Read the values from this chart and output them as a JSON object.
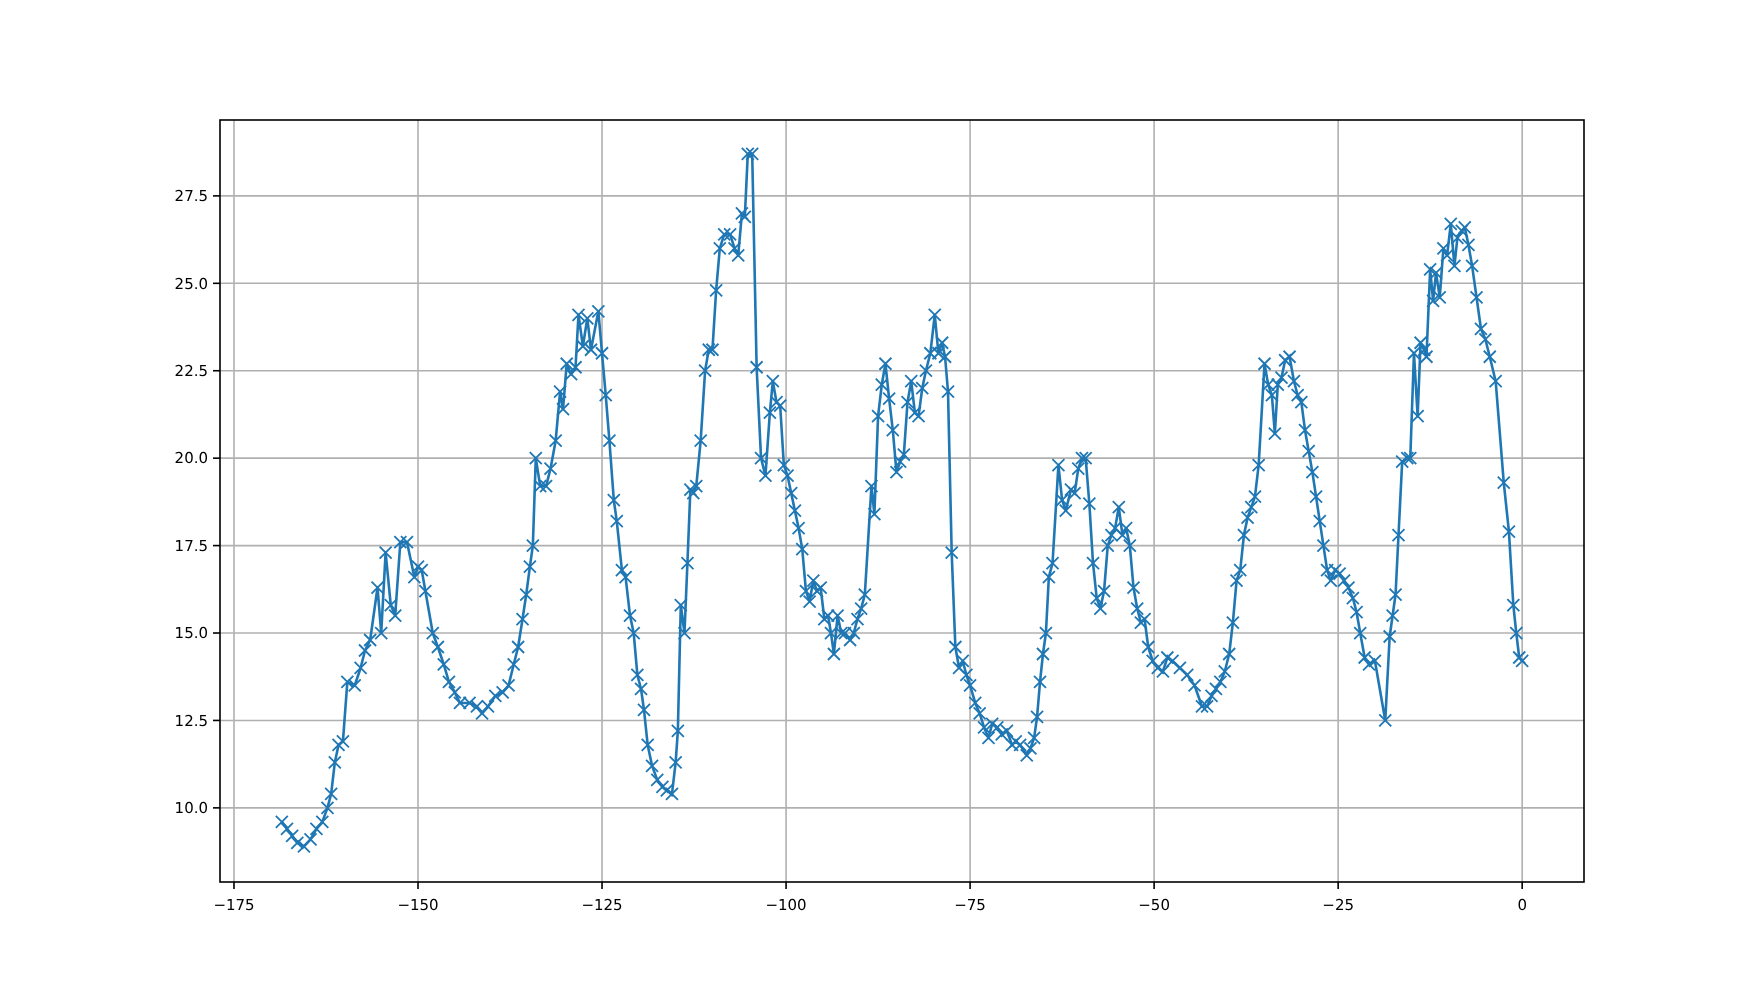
{
  "chart_data": {
    "type": "line",
    "xlim": [
      -176.9,
      8.4
    ],
    "ylim": [
      7.88,
      29.67
    ],
    "xticks": [
      {
        "value": -175,
        "label": "−175"
      },
      {
        "value": -150,
        "label": "−150"
      },
      {
        "value": -125,
        "label": "−125"
      },
      {
        "value": -100,
        "label": "−100"
      },
      {
        "value": -75,
        "label": "−75"
      },
      {
        "value": -50,
        "label": "−50"
      },
      {
        "value": -25,
        "label": "−25"
      },
      0
    ],
    "yticks": [
      {
        "value": 10,
        "label": "10.0"
      },
      {
        "value": 12.5,
        "label": "12.5"
      },
      {
        "value": 15,
        "label": "15.0"
      },
      {
        "value": 17.5,
        "label": "17.5"
      },
      {
        "value": 20,
        "label": "20.0"
      },
      {
        "value": 22.5,
        "label": "22.5"
      },
      {
        "value": 25,
        "label": "25.0"
      },
      {
        "value": 27.5,
        "label": "27.5"
      }
    ],
    "grid": true,
    "marker": "cross",
    "line_style": "solid",
    "series": [
      {
        "color": "#1f77b4",
        "x": [
          -168.5,
          -167.8,
          -167.1,
          -166.4,
          -165.5,
          -164.6,
          -163.8,
          -163,
          -162.3,
          -161.8,
          -161.3,
          -160.8,
          -160.2,
          -159.6,
          -158.6,
          -157.8,
          -157.2,
          -156.5,
          -155.5,
          -155,
          -154.4,
          -153.7,
          -153.1,
          -152.4,
          -151.5,
          -150.5,
          -150,
          -149.5,
          -149,
          -148,
          -147.3,
          -146.5,
          -145.8,
          -145,
          -144.3,
          -143,
          -142,
          -141.3,
          -140.5,
          -139.5,
          -138.5,
          -137.7,
          -137,
          -136.4,
          -135.8,
          -135.3,
          -134.8,
          -134.4,
          -134,
          -133.4,
          -132.6,
          -132,
          -131.3,
          -130.7,
          -130.3,
          -129.8,
          -129.2,
          -128.6,
          -128.2,
          -127.6,
          -127,
          -126.5,
          -125.5,
          -125,
          -124.5,
          -124,
          -123.4,
          -123,
          -122.3,
          -121.8,
          -121.2,
          -120.7,
          -120.2,
          -119.7,
          -119.3,
          -118.8,
          -118.2,
          -117.5,
          -116.8,
          -116.2,
          -115.5,
          -115,
          -114.7,
          -114.3,
          -113.8,
          -113.4,
          -113,
          -112.6,
          -112.2,
          -111.6,
          -111,
          -110.5,
          -110,
          -109.5,
          -109,
          -108.4,
          -107.6,
          -107,
          -106.5,
          -106,
          -105.6,
          -105.2,
          -104.6,
          -104,
          -103.4,
          -102.8,
          -102.2,
          -101.8,
          -101.3,
          -100.8,
          -100.3,
          -99.8,
          -99.3,
          -98.8,
          -98.3,
          -97.8,
          -97.3,
          -96.8,
          -96.3,
          -95.8,
          -95.3,
          -94.8,
          -94.3,
          -93.9,
          -93.5,
          -93,
          -92.5,
          -92,
          -91.3,
          -90.8,
          -90.3,
          -89.8,
          -89.3,
          -88.4,
          -88,
          -87.5,
          -87,
          -86.5,
          -86,
          -85.5,
          -85,
          -84.5,
          -84,
          -83.5,
          -83,
          -82.5,
          -82,
          -81.5,
          -81,
          -80.4,
          -79.8,
          -79.3,
          -78.8,
          -78.4,
          -78,
          -77.5,
          -77,
          -76.5,
          -76,
          -75.5,
          -75,
          -74.3,
          -73.7,
          -73.1,
          -72.5,
          -72,
          -71.3,
          -70.7,
          -70,
          -69.3,
          -68.8,
          -68.2,
          -67.3,
          -66.8,
          -66.3,
          -65.9,
          -65.5,
          -65.1,
          -64.7,
          -64.3,
          -63.8,
          -63,
          -62.5,
          -62,
          -61.3,
          -60.8,
          -60.3,
          -59.8,
          -59.3,
          -58.8,
          -58.3,
          -57.8,
          -57.3,
          -56.8,
          -56.3,
          -55.8,
          -55.3,
          -54.8,
          -54.3,
          -53.8,
          -53.3,
          -52.8,
          -52.3,
          -51.8,
          -51.3,
          -50.8,
          -50.2,
          -49.5,
          -48.8,
          -48.2,
          -47.5,
          -46.5,
          -45.5,
          -44.5,
          -43.5,
          -42.8,
          -42.2,
          -41.6,
          -41,
          -40.4,
          -39.8,
          -39.3,
          -38.8,
          -38.3,
          -37.8,
          -37.3,
          -36.8,
          -36.3,
          -35.8,
          -35,
          -34.5,
          -34,
          -33.6,
          -33.2,
          -32.7,
          -32.2,
          -31.6,
          -31,
          -30.5,
          -30,
          -29.5,
          -29,
          -28.5,
          -28,
          -27.5,
          -27,
          -26.5,
          -26,
          -25.4,
          -24.8,
          -24.2,
          -23.6,
          -23,
          -22.5,
          -22,
          -21.4,
          -20.8,
          -20,
          -18.6,
          -18,
          -17.6,
          -17.2,
          -16.8,
          -16.3,
          -15.6,
          -15.2,
          -14.7,
          -14.2,
          -13.8,
          -13.3,
          -13,
          -12.5,
          -12.1,
          -11.7,
          -11.2,
          -10.7,
          -10.2,
          -9.7,
          -9.2,
          -8.8,
          -8.2,
          -7.8,
          -7.3,
          -6.8,
          -6.2,
          -5.6,
          -5,
          -4.4,
          -3.6,
          -2.5,
          -1.8,
          -1.2,
          -0.8,
          -0.4,
          0
        ],
        "values": [
          9.6,
          9.4,
          9.2,
          9.0,
          8.9,
          9.1,
          9.4,
          9.6,
          10.0,
          10.4,
          11.3,
          11.8,
          11.9,
          13.6,
          13.5,
          14.0,
          14.5,
          14.8,
          16.3,
          15.0,
          17.3,
          15.8,
          15.5,
          17.6,
          17.6,
          16.6,
          16.9,
          16.8,
          16.2,
          15.0,
          14.6,
          14.1,
          13.6,
          13.3,
          13.0,
          13.0,
          12.9,
          12.7,
          12.9,
          13.2,
          13.3,
          13.5,
          14.1,
          14.6,
          15.4,
          16.1,
          16.9,
          17.5,
          20.0,
          19.2,
          19.2,
          19.7,
          20.5,
          21.9,
          21.4,
          22.7,
          22.4,
          22.6,
          24.1,
          23.2,
          24.0,
          23.1,
          24.2,
          23.0,
          21.8,
          20.5,
          18.8,
          18.2,
          16.8,
          16.6,
          15.5,
          15.0,
          13.8,
          13.4,
          12.8,
          11.8,
          11.2,
          10.8,
          10.6,
          10.5,
          10.4,
          11.3,
          12.2,
          15.8,
          15.0,
          17.0,
          19.1,
          19.0,
          19.2,
          20.5,
          22.5,
          23.1,
          23.1,
          24.8,
          26.0,
          26.4,
          26.4,
          26.0,
          25.8,
          27.0,
          26.9,
          28.7,
          28.7,
          22.6,
          20.0,
          19.5,
          21.3,
          22.2,
          21.6,
          21.5,
          19.8,
          19.5,
          19.0,
          18.5,
          18.0,
          17.4,
          16.2,
          15.9,
          16.5,
          16.2,
          16.3,
          15.4,
          15.5,
          15.0,
          14.4,
          15.5,
          15.0,
          15.0,
          14.8,
          15.0,
          15.4,
          15.7,
          16.1,
          19.2,
          18.4,
          21.2,
          22.1,
          22.7,
          21.7,
          20.8,
          19.6,
          19.9,
          20.1,
          21.6,
          22.2,
          21.3,
          21.2,
          22.0,
          22.5,
          23.0,
          24.1,
          23.0,
          23.3,
          22.9,
          21.9,
          17.3,
          14.6,
          14.0,
          14.2,
          13.8,
          13.5,
          13.0,
          12.7,
          12.3,
          12.0,
          12.4,
          12.3,
          12.1,
          12.2,
          11.8,
          11.9,
          11.8,
          11.5,
          11.7,
          12.0,
          12.6,
          13.6,
          14.4,
          15.0,
          16.6,
          17.0,
          19.8,
          18.8,
          18.5,
          19.1,
          19.0,
          19.7,
          20.0,
          20.0,
          18.7,
          17.0,
          16.0,
          15.7,
          16.2,
          17.5,
          17.8,
          18.0,
          18.6,
          17.8,
          18.0,
          17.5,
          16.3,
          15.7,
          15.3,
          15.4,
          14.6,
          14.2,
          14.0,
          13.9,
          14.3,
          14.2,
          14.0,
          13.8,
          13.5,
          12.9,
          12.9,
          13.2,
          13.4,
          13.6,
          13.9,
          14.4,
          15.3,
          16.5,
          16.8,
          17.8,
          18.3,
          18.6,
          18.9,
          19.8,
          22.7,
          22.1,
          21.8,
          20.7,
          22.1,
          22.3,
          22.8,
          22.9,
          22.2,
          21.8,
          21.6,
          20.8,
          20.2,
          19.6,
          18.9,
          18.2,
          17.5,
          16.8,
          16.5,
          16.8,
          16.7,
          16.5,
          16.3,
          16.0,
          15.6,
          15.0,
          14.3,
          14.1,
          14.2,
          12.5,
          14.9,
          15.5,
          16.1,
          17.8,
          19.9,
          20.0,
          20.0,
          23.0,
          21.2,
          23.3,
          23.1,
          22.9,
          25.4,
          24.5,
          25.3,
          24.6,
          26.0,
          25.8,
          26.7,
          25.5,
          26.3,
          26.5,
          26.6,
          26.1,
          25.5,
          24.6,
          23.7,
          23.4,
          22.9,
          22.2,
          19.3,
          17.9,
          15.8,
          15.0,
          14.3,
          14.2
        ]
      }
    ]
  }
}
